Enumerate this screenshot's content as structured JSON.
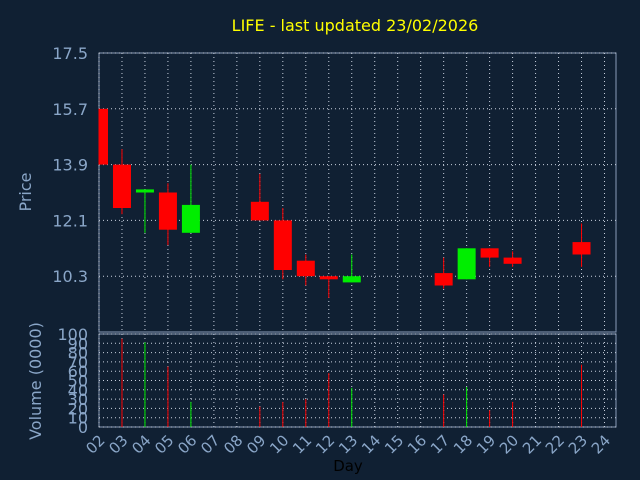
{
  "chart_data": {
    "type": "candlestick",
    "title": "LIFE - last updated 23/02/2026",
    "xlabel": "Day",
    "price_panel": {
      "ylabel": "Price",
      "ylim": [
        8.5,
        17.5
      ],
      "yticks": [
        "17.5",
        "15.7",
        "13.9",
        "12.1",
        "10.3"
      ],
      "ytick_values": [
        17.5,
        15.7,
        13.9,
        12.1,
        10.3
      ],
      "grid": true
    },
    "volume_panel": {
      "ylabel": "Volume (0000)",
      "ylim": [
        0,
        100
      ],
      "yticks": [
        "100",
        "90",
        "80",
        "70",
        "60",
        "50",
        "40",
        "30",
        "20",
        "10",
        "0"
      ],
      "ytick_values": [
        100,
        90,
        80,
        70,
        60,
        50,
        40,
        30,
        20,
        10,
        0
      ]
    },
    "days": [
      "02",
      "03",
      "04",
      "05",
      "06",
      "07",
      "08",
      "09",
      "10",
      "11",
      "12",
      "13",
      "14",
      "15",
      "16",
      "17",
      "18",
      "19",
      "20",
      "21",
      "22",
      "23",
      "24"
    ],
    "candles": [
      {
        "day": "02",
        "open": 15.7,
        "close": 13.9,
        "high": 15.7,
        "low": 13.9
      },
      {
        "day": "03",
        "open": 13.9,
        "close": 12.5,
        "high": 14.4,
        "low": 12.3
      },
      {
        "day": "04",
        "open": 13.0,
        "close": 13.1,
        "high": 13.1,
        "low": 11.7
      },
      {
        "day": "05",
        "open": 13.0,
        "close": 11.8,
        "high": 13.3,
        "low": 11.3
      },
      {
        "day": "06",
        "open": 11.7,
        "close": 12.6,
        "high": 13.9,
        "low": 11.7
      },
      {
        "day": "09",
        "open": 12.7,
        "close": 12.1,
        "high": 13.6,
        "low": 12.1
      },
      {
        "day": "10",
        "open": 12.1,
        "close": 10.5,
        "high": 12.5,
        "low": 10.2
      },
      {
        "day": "11",
        "open": 10.8,
        "close": 10.3,
        "high": 11.0,
        "low": 10.0
      },
      {
        "day": "12",
        "open": 10.3,
        "close": 10.2,
        "high": 10.3,
        "low": 9.6
      },
      {
        "day": "13",
        "open": 10.1,
        "close": 10.3,
        "high": 11.0,
        "low": 10.1
      },
      {
        "day": "17",
        "open": 10.4,
        "close": 10.0,
        "high": 10.9,
        "low": 9.9
      },
      {
        "day": "18",
        "open": 10.2,
        "close": 11.2,
        "high": 11.2,
        "low": 10.2
      },
      {
        "day": "19",
        "open": 11.2,
        "close": 10.9,
        "high": 11.2,
        "low": 10.6
      },
      {
        "day": "20",
        "open": 10.9,
        "close": 10.7,
        "high": 11.1,
        "low": 10.6
      },
      {
        "day": "23",
        "open": 11.4,
        "close": 11.0,
        "high": 12.0,
        "low": 10.6
      }
    ],
    "volumes": [
      {
        "day": "03",
        "value": 95
      },
      {
        "day": "04",
        "value": 91
      },
      {
        "day": "05",
        "value": 65
      },
      {
        "day": "06",
        "value": 27
      },
      {
        "day": "09",
        "value": 22
      },
      {
        "day": "10",
        "value": 27
      },
      {
        "day": "11",
        "value": 30
      },
      {
        "day": "12",
        "value": 58
      },
      {
        "day": "13",
        "value": 42
      },
      {
        "day": "17",
        "value": 35
      },
      {
        "day": "18",
        "value": 43
      },
      {
        "day": "19",
        "value": 18
      },
      {
        "day": "20",
        "value": 27
      },
      {
        "day": "23",
        "value": 67
      }
    ],
    "colors": {
      "background": "#102033",
      "plot_border": "#8a9bb8",
      "grid": "#c8d0de",
      "up": "#00ee00",
      "down": "#ff0000",
      "title": "#ffff00",
      "axis_text": "#8aa6c8",
      "xlabel_text": "#000000"
    }
  }
}
